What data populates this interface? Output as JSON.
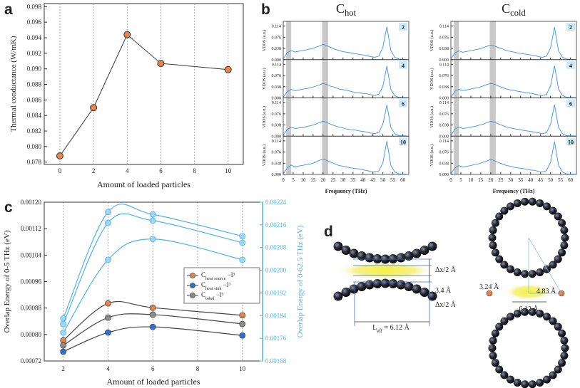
{
  "panels": [
    "a",
    "b",
    "c",
    "d"
  ],
  "chart_data": [
    {
      "type": "line",
      "x": [
        0,
        2,
        4,
        6,
        10
      ],
      "values": [
        0.0788,
        0.085,
        0.0944,
        0.0907,
        0.0899
      ],
      "color": "#e8834a",
      "xlim": [
        -0.93,
        10.9
      ],
      "xticks": [
        0,
        2,
        4,
        6,
        8,
        10
      ],
      "ylim": [
        0.0777,
        0.0984
      ],
      "yticks": [
        0.078,
        {
          "value": 0.08,
          "label": "0.080"
        },
        0.082,
        0.084,
        0.086,
        0.088,
        {
          "value": 0.09,
          "label": "0.090"
        },
        0.092,
        0.094,
        0.096,
        0.098
      ],
      "xlabel": "Amount of loaded particles",
      "ylabel": "Thermal conductance  (W/mK)",
      "grid": "x"
    },
    {
      "type": "spectra",
      "x": [
        0,
        2,
        4,
        6,
        8,
        10,
        12,
        14,
        16,
        18,
        20,
        22,
        24,
        26,
        28,
        30,
        32,
        34,
        36,
        38,
        40,
        42,
        44,
        46,
        48,
        50,
        52,
        54,
        56,
        58,
        60,
        62
      ],
      "xlim": [
        0,
        63
      ],
      "xticks": [
        0,
        5,
        10,
        15,
        20,
        25,
        30,
        35,
        40,
        45,
        50,
        55,
        60
      ],
      "ylim": [
        0,
        0.13
      ],
      "yticks": [
        {
          "value": 0,
          "label": "0.000"
        },
        0.038,
        0.076,
        0.114
      ],
      "ylabel": "VDOS (a.u.)",
      "xlabel": "Frequency (THz)",
      "color": "#3d8fe0",
      "bands": [
        [
          1.5,
          4
        ],
        [
          19.5,
          22.5
        ]
      ],
      "columns": [
        {
          "title": "C",
          "title_sub": "hot",
          "series": [
            {
              "name": "2",
              "values": [
                0.002,
                0.024,
                0.031,
                0.026,
                0.029,
                0.031,
                0.034,
                0.037,
                0.041,
                0.046,
                0.052,
                0.047,
                0.041,
                0.035,
                0.031,
                0.027,
                0.025,
                0.023,
                0.02,
                0.018,
                0.016,
                0.013,
                0.01,
                0.008,
                0.012,
                0.042,
                0.112,
                0.031,
                0.008,
                0.002,
                0.001,
                0.001
              ]
            },
            {
              "name": "4",
              "values": [
                0.002,
                0.021,
                0.029,
                0.024,
                0.027,
                0.03,
                0.032,
                0.035,
                0.039,
                0.044,
                0.049,
                0.045,
                0.039,
                0.036,
                0.03,
                0.028,
                0.026,
                0.022,
                0.019,
                0.018,
                0.015,
                0.014,
                0.011,
                0.008,
                0.013,
                0.039,
                0.108,
                0.029,
                0.007,
                0.002,
                0.001,
                0.001
              ]
            },
            {
              "name": "6",
              "values": [
                0.002,
                0.023,
                0.03,
                0.026,
                0.028,
                0.029,
                0.033,
                0.036,
                0.04,
                0.046,
                0.051,
                0.046,
                0.04,
                0.035,
                0.031,
                0.028,
                0.024,
                0.022,
                0.021,
                0.018,
                0.016,
                0.014,
                0.01,
                0.009,
                0.012,
                0.041,
                0.106,
                0.03,
                0.008,
                0.002,
                0.001,
                0.001
              ]
            },
            {
              "name": "10",
              "values": [
                0.002,
                0.022,
                0.032,
                0.025,
                0.029,
                0.031,
                0.034,
                0.036,
                0.041,
                0.047,
                0.053,
                0.047,
                0.041,
                0.036,
                0.03,
                0.028,
                0.025,
                0.022,
                0.02,
                0.019,
                0.016,
                0.013,
                0.01,
                0.008,
                0.012,
                0.04,
                0.113,
                0.031,
                0.008,
                0.002,
                0.001,
                0.001
              ]
            }
          ]
        },
        {
          "title": "C",
          "title_sub": "cold",
          "series": [
            {
              "name": "2",
              "values": [
                0.002,
                0.023,
                0.03,
                0.025,
                0.028,
                0.03,
                0.033,
                0.036,
                0.04,
                0.045,
                0.05,
                0.046,
                0.04,
                0.036,
                0.03,
                0.028,
                0.025,
                0.022,
                0.02,
                0.018,
                0.016,
                0.014,
                0.01,
                0.008,
                0.012,
                0.04,
                0.11,
                0.03,
                0.008,
                0.002,
                0.001,
                0.001
              ]
            },
            {
              "name": "4",
              "values": [
                0.002,
                0.022,
                0.029,
                0.025,
                0.027,
                0.03,
                0.033,
                0.035,
                0.04,
                0.045,
                0.049,
                0.046,
                0.04,
                0.035,
                0.03,
                0.027,
                0.025,
                0.022,
                0.02,
                0.017,
                0.016,
                0.013,
                0.01,
                0.008,
                0.012,
                0.041,
                0.109,
                0.03,
                0.008,
                0.002,
                0.001,
                0.001
              ]
            },
            {
              "name": "6",
              "values": [
                0.002,
                0.024,
                0.031,
                0.026,
                0.028,
                0.031,
                0.033,
                0.037,
                0.04,
                0.046,
                0.051,
                0.047,
                0.041,
                0.036,
                0.031,
                0.028,
                0.025,
                0.023,
                0.02,
                0.018,
                0.016,
                0.014,
                0.011,
                0.008,
                0.012,
                0.04,
                0.107,
                0.03,
                0.008,
                0.002,
                0.001,
                0.001
              ]
            },
            {
              "name": "10",
              "values": [
                0.002,
                0.022,
                0.03,
                0.025,
                0.028,
                0.03,
                0.034,
                0.036,
                0.041,
                0.045,
                0.052,
                0.046,
                0.04,
                0.035,
                0.03,
                0.028,
                0.024,
                0.022,
                0.02,
                0.018,
                0.015,
                0.014,
                0.01,
                0.008,
                0.013,
                0.041,
                0.111,
                0.031,
                0.008,
                0.002,
                0.001,
                0.001
              ]
            }
          ]
        }
      ]
    },
    {
      "type": "dual-line",
      "x": [
        2,
        4,
        6,
        10
      ],
      "xlim": [
        1.15,
        10.9
      ],
      "xticks": [
        2,
        4,
        6,
        8,
        10
      ],
      "ylim": [
        0.00072,
        0.0012
      ],
      "yticks": [
        0.00072,
        {
          "value": 0.0008,
          "label": "0.00080"
        },
        0.00088,
        0.00096,
        0.00104,
        0.00112,
        {
          "value": 0.0012,
          "label": "0.00120"
        }
      ],
      "y2lim": [
        0.00168,
        0.00224
      ],
      "y2ticks": [
        0.00168,
        0.00176,
        0.00184,
        0.00192,
        {
          "value": 0.002,
          "label": "0.00200"
        },
        0.00208,
        0.00216,
        0.00224
      ],
      "xlabel": "Amount of loaded particles",
      "ylabel": "Overlap Energy of 0-5 THz (eV)",
      "y2label": "Overlap Energy of 0-62.5 THz (eV)",
      "y2color": "#4fb3e8",
      "grid": "x",
      "series": [
        {
          "name": "C",
          "name_sub": "heat source",
          "name_tail": " −l³",
          "color": "#e8834a",
          "line_color": "#444444",
          "values": [
            0.000782,
            0.000894,
            0.000881,
            0.000858
          ]
        },
        {
          "name": "C",
          "name_sub": "heat sink",
          "name_tail": " −l³",
          "color": "#2f6fd6",
          "line_color": "#444444",
          "values": [
            0.000748,
            0.000806,
            0.000823,
            0.000797
          ]
        },
        {
          "name": "C",
          "name_sub": "tobal",
          "name_tail": " −l³",
          "color": "#8a8f8a",
          "line_color": "#444444",
          "values": [
            0.000767,
            0.000851,
            0.00086,
            0.000832
          ]
        },
        {
          "axis": "y2",
          "color": "#9fd6f2",
          "line_color": "#4fb3e8",
          "values": [
            0.00183,
            0.002205,
            0.002197,
            0.00212
          ]
        },
        {
          "axis": "y2",
          "color": "#9fd6f2",
          "line_color": "#4fb3e8",
          "values": [
            0.00181,
            0.002167,
            0.002175,
            0.002097
          ]
        },
        {
          "axis": "y2",
          "color": "#9fd6f2",
          "line_color": "#4fb3e8",
          "values": [
            0.00178,
            0.002037,
            0.00211,
            0.002037
          ]
        }
      ]
    }
  ],
  "diagram": {
    "left": {
      "labels": [
        "Δx/2 Å",
        "3.4 Å",
        "Δx/2 Å"
      ],
      "length_label": "L",
      "length_sub": "eff",
      "length_value": " = 6.12 Å"
    },
    "right": {
      "labels": [
        "3.24 Å",
        "4.83 Å",
        "6.12 Å"
      ]
    }
  }
}
